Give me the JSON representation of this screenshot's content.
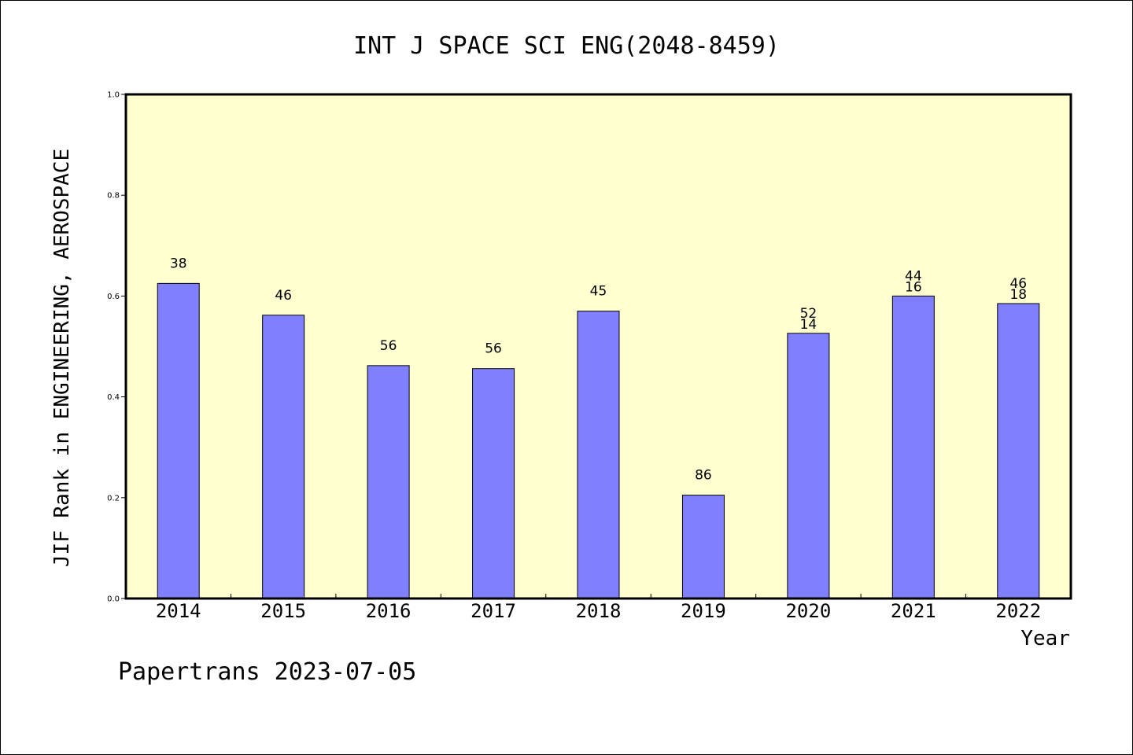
{
  "chart_data": {
    "type": "bar",
    "title": "INT J SPACE SCI ENG(2048-8459)",
    "xlabel": "Year",
    "ylabel": "JIF Rank in ENGINEERING, AEROSPACE",
    "ylim": [
      0,
      1.0
    ],
    "yticks": [
      "0.0",
      "0.2",
      "0.4",
      "0.6",
      "0.8",
      "1.0"
    ],
    "grid": false,
    "categories": [
      "2014",
      "2015",
      "2016",
      "2017",
      "2018",
      "2019",
      "2020",
      "2021",
      "2022"
    ],
    "values": [
      0.625,
      0.562,
      0.462,
      0.456,
      0.57,
      0.205,
      0.526,
      0.6,
      0.585
    ],
    "labels": [
      [
        "38"
      ],
      [
        "46"
      ],
      [
        "56"
      ],
      [
        "56"
      ],
      [
        "45"
      ],
      [
        "86"
      ],
      [
        "52",
        "14"
      ],
      [
        "44",
        "16"
      ],
      [
        "46",
        "18"
      ]
    ],
    "colors": {
      "plot_background": "#ffffd0",
      "bar_fill": "#8080ff",
      "bar_stroke": "#000000"
    }
  },
  "footer": "Papertrans 2023-07-05"
}
